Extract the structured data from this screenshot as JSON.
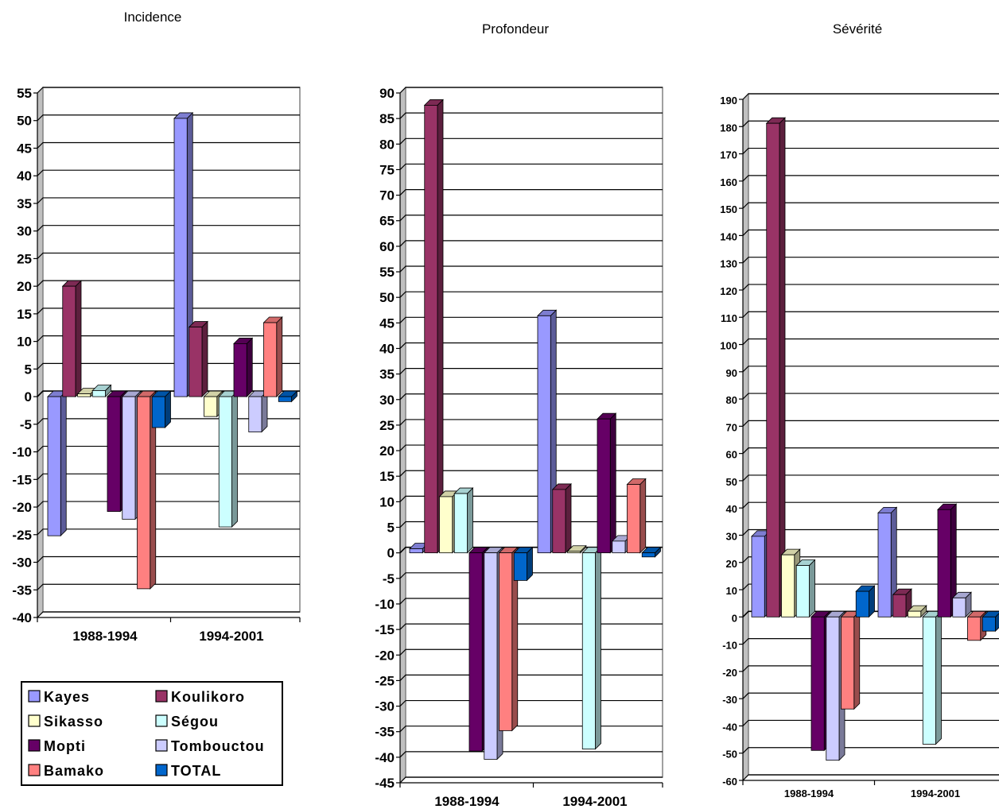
{
  "legend": [
    {
      "name": "Kayes",
      "color": "#9999FF"
    },
    {
      "name": "Koulikoro",
      "color": "#993366"
    },
    {
      "name": "Sikasso",
      "color": "#FFFFCC"
    },
    {
      "name": "Ségou",
      "color": "#CCFFFF"
    },
    {
      "name": "Mopti",
      "color": "#660066"
    },
    {
      "name": "Tombouctou",
      "color": "#CCCCFF"
    },
    {
      "name": "Bamako",
      "color": "#FF8080"
    },
    {
      "name": "TOTAL",
      "color": "#0066CC"
    }
  ],
  "chart_data": [
    {
      "type": "bar",
      "title": "Incidence",
      "categories": [
        "1988-1994",
        "1994-2001"
      ],
      "ylim": [
        -40,
        55
      ],
      "ystep": 5,
      "grid": true,
      "legend_position": "below",
      "series": [
        {
          "name": "Kayes",
          "values": [
            -25.2,
            50.4
          ]
        },
        {
          "name": "Koulikoro",
          "values": [
            20.0,
            12.6
          ]
        },
        {
          "name": "Sikasso",
          "values": [
            0.5,
            -3.6
          ]
        },
        {
          "name": "Ségou",
          "values": [
            1.1,
            -23.6
          ]
        },
        {
          "name": "Mopti",
          "values": [
            -20.8,
            9.6
          ]
        },
        {
          "name": "Tombouctou",
          "values": [
            -22.2,
            -6.4
          ]
        },
        {
          "name": "Bamako",
          "values": [
            -34.8,
            13.4
          ]
        },
        {
          "name": "TOTAL",
          "values": [
            -5.6,
            -0.9
          ]
        }
      ]
    },
    {
      "type": "bar",
      "title": "Profondeur",
      "categories": [
        "1988-1994",
        "1994-2001"
      ],
      "ylim": [
        -45,
        90
      ],
      "ystep": 5,
      "grid": true,
      "series": [
        {
          "name": "Kayes",
          "values": [
            0.8,
            46.4
          ]
        },
        {
          "name": "Koulikoro",
          "values": [
            87.6,
            12.4
          ]
        },
        {
          "name": "Sikasso",
          "values": [
            11.0,
            0.3
          ]
        },
        {
          "name": "Ségou",
          "values": [
            11.6,
            -38.4
          ]
        },
        {
          "name": "Mopti",
          "values": [
            -38.8,
            26.2
          ]
        },
        {
          "name": "Tombouctou",
          "values": [
            -40.4,
            2.3
          ]
        },
        {
          "name": "Bamako",
          "values": [
            -34.8,
            13.4
          ]
        },
        {
          "name": "TOTAL",
          "values": [
            -5.4,
            -0.8
          ]
        }
      ]
    },
    {
      "type": "bar",
      "title": "Sévérité",
      "categories": [
        "1988-1994",
        "1994-2001"
      ],
      "ylim": [
        -60,
        190
      ],
      "ystep": 10,
      "grid": true,
      "series": [
        {
          "name": "Kayes",
          "values": [
            29.6,
            38.2
          ]
        },
        {
          "name": "Koulikoro",
          "values": [
            181.2,
            8.2
          ]
        },
        {
          "name": "Sikasso",
          "values": [
            22.8,
            2.1
          ]
        },
        {
          "name": "Ségou",
          "values": [
            18.9,
            -46.7
          ]
        },
        {
          "name": "Mopti",
          "values": [
            -49.0,
            39.4
          ]
        },
        {
          "name": "Tombouctou",
          "values": [
            -52.6,
            7.0
          ]
        },
        {
          "name": "Bamako",
          "values": [
            -33.8,
            -8.6
          ]
        },
        {
          "name": "TOTAL",
          "values": [
            9.4,
            -5.2
          ]
        }
      ]
    }
  ]
}
